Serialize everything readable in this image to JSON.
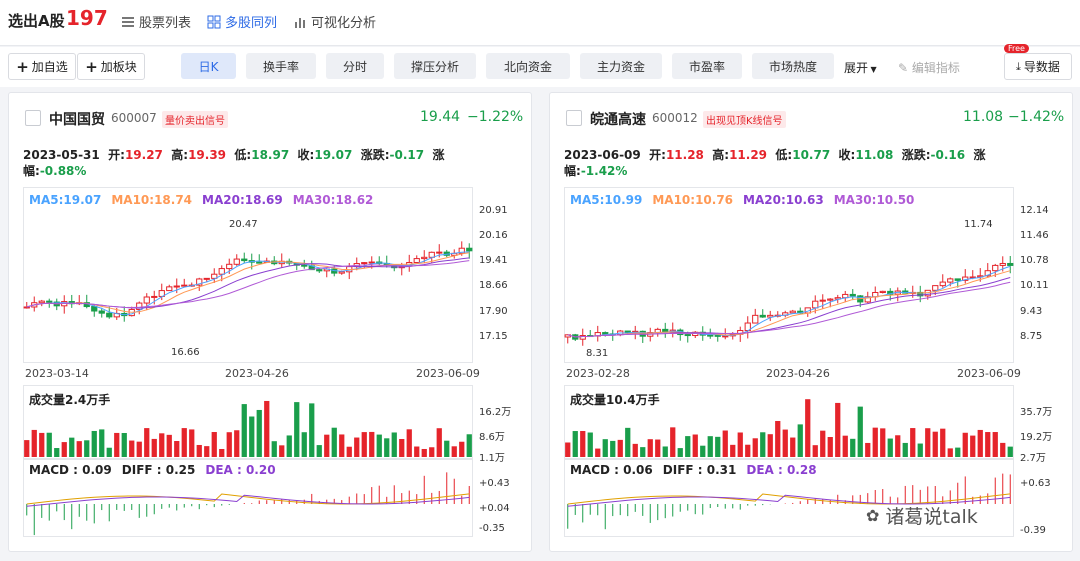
{
  "topbar": {
    "title": "选出A股",
    "count": "197",
    "tabs": [
      {
        "label": "股票列表"
      },
      {
        "label": "多股同列"
      },
      {
        "label": "可视化分析"
      }
    ]
  },
  "toolbar": {
    "add_watch": "加自选",
    "add_block": "加板块",
    "tabs": [
      "日K",
      "换手率",
      "分时",
      "撑压分析",
      "北向资金",
      "主力资金",
      "市盈率",
      "市场热度"
    ],
    "expand": "展开",
    "edit_indicator": "编辑指标",
    "export_badge": "Free",
    "export": "导数据"
  },
  "colors": {
    "up": "#e5242b",
    "down": "#1a9e4b",
    "ma5": "#4aa3ff",
    "ma10": "#ff9955",
    "ma20": "#8a3fd0",
    "ma30": "#b05ad6",
    "accent": "#2e6be6"
  },
  "cards": [
    {
      "name": "中国国贸",
      "code": "600007",
      "signal": "量价卖出信号",
      "price": "19.44",
      "change_pct": "−1.22%",
      "date": "2023-05-31",
      "open_l": "开:",
      "open": "19.27",
      "high_l": "高:",
      "high": "19.39",
      "low_l": "低:",
      "low": "18.97",
      "close_l": "收:",
      "close": "19.07",
      "chg_l": "涨跌:",
      "chg": "-0.17",
      "amp_l": "涨幅:",
      "amp": "-0.88%",
      "ma5": "MA5:19.07",
      "ma10": "MA10:18.74",
      "ma20": "MA20:18.69",
      "ma30": "MA30:18.62",
      "yticks": [
        "20.91",
        "20.16",
        "19.41",
        "18.66",
        "17.90",
        "17.15"
      ],
      "max_label": "20.47",
      "min_label": "16.66",
      "dates": [
        "2023-03-14",
        "2023-04-26",
        "2023-06-09"
      ],
      "vol_label": "成交量2.4万手",
      "vol_ticks": [
        "16.2万",
        "8.6万",
        "1.1万"
      ],
      "macd": "MACD : 0.09",
      "diff": "DIFF : 0.25",
      "dea": "DEA : 0.20",
      "macd_ticks": [
        "+0.43",
        "+0.04",
        "-0.35"
      ]
    },
    {
      "name": "皖通高速",
      "code": "600012",
      "signal": "出现见顶K线信号",
      "price": "11.08",
      "change_pct": "−1.42%",
      "date": "2023-06-09",
      "open_l": "开:",
      "open": "11.28",
      "high_l": "高:",
      "high": "11.29",
      "low_l": "低:",
      "low": "10.77",
      "close_l": "收:",
      "close": "11.08",
      "chg_l": "涨跌:",
      "chg": "-0.16",
      "amp_l": "涨幅:",
      "amp": "-1.42%",
      "ma5": "MA5:10.99",
      "ma10": "MA10:10.76",
      "ma20": "MA20:10.63",
      "ma30": "MA30:10.50",
      "yticks": [
        "12.14",
        "11.46",
        "10.78",
        "10.11",
        "9.43",
        "8.75"
      ],
      "max_label": "11.74",
      "min_label": "8.31",
      "dates": [
        "2023-02-28",
        "2023-04-26",
        "2023-06-09"
      ],
      "vol_label": "成交量10.4万手",
      "vol_ticks": [
        "35.7万",
        "19.2万",
        "2.7万"
      ],
      "macd": "MACD : 0.06",
      "diff": "DIFF : 0.31",
      "dea": "DEA : 0.28",
      "macd_ticks": [
        "+0.63",
        "-0.39"
      ]
    }
  ],
  "watermark": "诸葛说talk"
}
